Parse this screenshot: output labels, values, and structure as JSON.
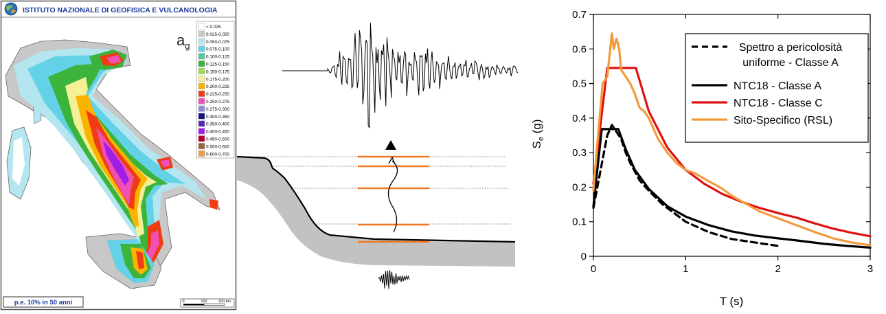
{
  "map": {
    "institute_name": "ISTITUTO NAZIONALE DI GEOFISICA E VULCANOLOGIA",
    "param_main": "a",
    "param_sub": "g",
    "probability_label": "p.e. 10% in 50 anni",
    "scale_labels": [
      "0",
      "100",
      "200 km"
    ],
    "legend": [
      {
        "label": "< 0.025",
        "color": "#ffffff"
      },
      {
        "label": "0.025-0.050",
        "color": "#c8c8c8"
      },
      {
        "label": "0.050-0.075",
        "color": "#b4e6f0"
      },
      {
        "label": "0.075-0.100",
        "color": "#64d2e6"
      },
      {
        "label": "0.100-0.125",
        "color": "#50c8a0"
      },
      {
        "label": "0.125-0.150",
        "color": "#3cb43c"
      },
      {
        "label": "0.150-0.175",
        "color": "#a0dc50"
      },
      {
        "label": "0.175-0.200",
        "color": "#f5f096"
      },
      {
        "label": "0.200-0.225",
        "color": "#fab400"
      },
      {
        "label": "0.225-0.250",
        "color": "#f03c14"
      },
      {
        "label": "0.250-0.275",
        "color": "#f050b4"
      },
      {
        "label": "0.275-0.300",
        "color": "#8c8cdc"
      },
      {
        "label": "0.300-0.350",
        "color": "#14147d"
      },
      {
        "label": "0.350-0.400",
        "color": "#5a28b4"
      },
      {
        "label": "0.400-0.450",
        "color": "#a01ee6"
      },
      {
        "label": "0.450-0.500",
        "color": "#b40028"
      },
      {
        "label": "0.500-0.600",
        "color": "#96643c"
      },
      {
        "label": "0.600-0.700",
        "color": "#e6a050"
      }
    ]
  },
  "chart_data": {
    "type": "line",
    "xlabel": "T (s)",
    "ylabel_main": "S",
    "ylabel_sub": "e",
    "ylabel_unit": " (g)",
    "xlim": [
      0,
      3
    ],
    "ylim": [
      0,
      0.7
    ],
    "xticks": [
      0,
      1,
      2,
      3
    ],
    "yticks": [
      0,
      0.1,
      0.2,
      0.3,
      0.4,
      0.5,
      0.6,
      0.7
    ],
    "grid": false,
    "legend_position": "top-right",
    "series": [
      {
        "name": "Spettro a pericolosità uniforme - Classe A",
        "legend_lines": [
          "Spettro a pericolosità",
          "uniforme - Classe A"
        ],
        "color": "#000000",
        "dash": "dashed",
        "x": [
          0,
          0.05,
          0.1,
          0.15,
          0.2,
          0.25,
          0.3,
          0.35,
          0.4,
          0.5,
          0.6,
          0.75,
          1.0,
          1.25,
          1.5,
          1.75,
          2.0
        ],
        "y": [
          0.14,
          0.21,
          0.28,
          0.35,
          0.38,
          0.36,
          0.34,
          0.3,
          0.27,
          0.22,
          0.19,
          0.15,
          0.1,
          0.07,
          0.05,
          0.04,
          0.03
        ]
      },
      {
        "name": "NTC18 - Classe A",
        "legend_lines": [
          "NTC18 - Classe A"
        ],
        "color": "#000000",
        "dash": "solid",
        "x": [
          0,
          0.09,
          0.27,
          0.35,
          0.45,
          0.6,
          0.8,
          1.0,
          1.25,
          1.5,
          1.75,
          2.0,
          2.2,
          2.5,
          2.75,
          3.0
        ],
        "y": [
          0.145,
          0.368,
          0.368,
          0.31,
          0.25,
          0.195,
          0.145,
          0.115,
          0.09,
          0.072,
          0.06,
          0.052,
          0.046,
          0.036,
          0.03,
          0.025
        ]
      },
      {
        "name": "NTC18 - Classe C",
        "legend_lines": [
          "NTC18 - Classe C"
        ],
        "color": "#e01010",
        "dash": "solid",
        "x": [
          0,
          0.15,
          0.46,
          0.6,
          0.8,
          1.0,
          1.2,
          1.4,
          1.6,
          1.8,
          2.0,
          2.2,
          2.4,
          2.6,
          2.8,
          3.0
        ],
        "y": [
          0.21,
          0.545,
          0.545,
          0.42,
          0.315,
          0.25,
          0.21,
          0.18,
          0.158,
          0.14,
          0.125,
          0.112,
          0.095,
          0.08,
          0.068,
          0.058
        ]
      },
      {
        "name": "Sito-Specifico (RSL)",
        "legend_lines": [
          "Sito-Specifico (RSL)"
        ],
        "color": "#f39a3c",
        "dash": "solid",
        "x": [
          0,
          0.05,
          0.1,
          0.15,
          0.2,
          0.22,
          0.25,
          0.28,
          0.3,
          0.35,
          0.4,
          0.45,
          0.5,
          0.55,
          0.6,
          0.65,
          0.7,
          0.8,
          0.9,
          1.0,
          1.1,
          1.2,
          1.3,
          1.4,
          1.5,
          1.6,
          1.8,
          2.0,
          2.2,
          2.4,
          2.6,
          2.8,
          3.0
        ],
        "y": [
          0.19,
          0.35,
          0.5,
          0.52,
          0.645,
          0.6,
          0.63,
          0.6,
          0.54,
          0.52,
          0.5,
          0.47,
          0.43,
          0.42,
          0.4,
          0.37,
          0.34,
          0.3,
          0.27,
          0.25,
          0.24,
          0.225,
          0.21,
          0.195,
          0.175,
          0.16,
          0.13,
          0.11,
          0.09,
          0.07,
          0.052,
          0.04,
          0.032
        ]
      }
    ]
  }
}
